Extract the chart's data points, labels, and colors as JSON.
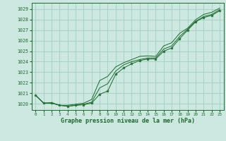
{
  "title": "Graphe pression niveau de la mer (hPa)",
  "bg_color": "#cce8e0",
  "grid_color": "#99ccbb",
  "line_color": "#1a6b2a",
  "xlim": [
    -0.5,
    23.5
  ],
  "ylim": [
    1019.4,
    1029.6
  ],
  "yticks": [
    1020,
    1021,
    1022,
    1023,
    1024,
    1025,
    1026,
    1027,
    1028,
    1029
  ],
  "xticks": [
    0,
    1,
    2,
    3,
    4,
    5,
    6,
    7,
    8,
    9,
    10,
    11,
    12,
    13,
    14,
    15,
    16,
    17,
    18,
    19,
    20,
    21,
    22,
    23
  ],
  "series": {
    "line_top": [
      1020.8,
      1020.05,
      1020.1,
      1019.85,
      1019.85,
      1019.95,
      1020.05,
      1020.4,
      1022.2,
      1022.6,
      1023.5,
      1023.9,
      1024.2,
      1024.5,
      1024.55,
      1024.5,
      1025.5,
      1025.8,
      1026.7,
      1027.2,
      1028.0,
      1028.5,
      1028.7,
      1029.1
    ],
    "line_mid": [
      1020.8,
      1020.05,
      1020.05,
      1019.85,
      1019.75,
      1019.85,
      1019.95,
      1020.15,
      1021.5,
      1021.9,
      1023.1,
      1023.7,
      1024.0,
      1024.2,
      1024.35,
      1024.35,
      1025.2,
      1025.5,
      1026.4,
      1027.1,
      1027.85,
      1028.3,
      1028.5,
      1028.95
    ],
    "line_bot": [
      1020.8,
      1020.05,
      1020.05,
      1019.85,
      1019.75,
      1019.85,
      1019.9,
      1020.05,
      1020.9,
      1021.2,
      1022.8,
      1023.4,
      1023.8,
      1024.1,
      1024.25,
      1024.25,
      1025.0,
      1025.3,
      1026.2,
      1027.0,
      1027.8,
      1028.2,
      1028.4,
      1028.85
    ]
  }
}
